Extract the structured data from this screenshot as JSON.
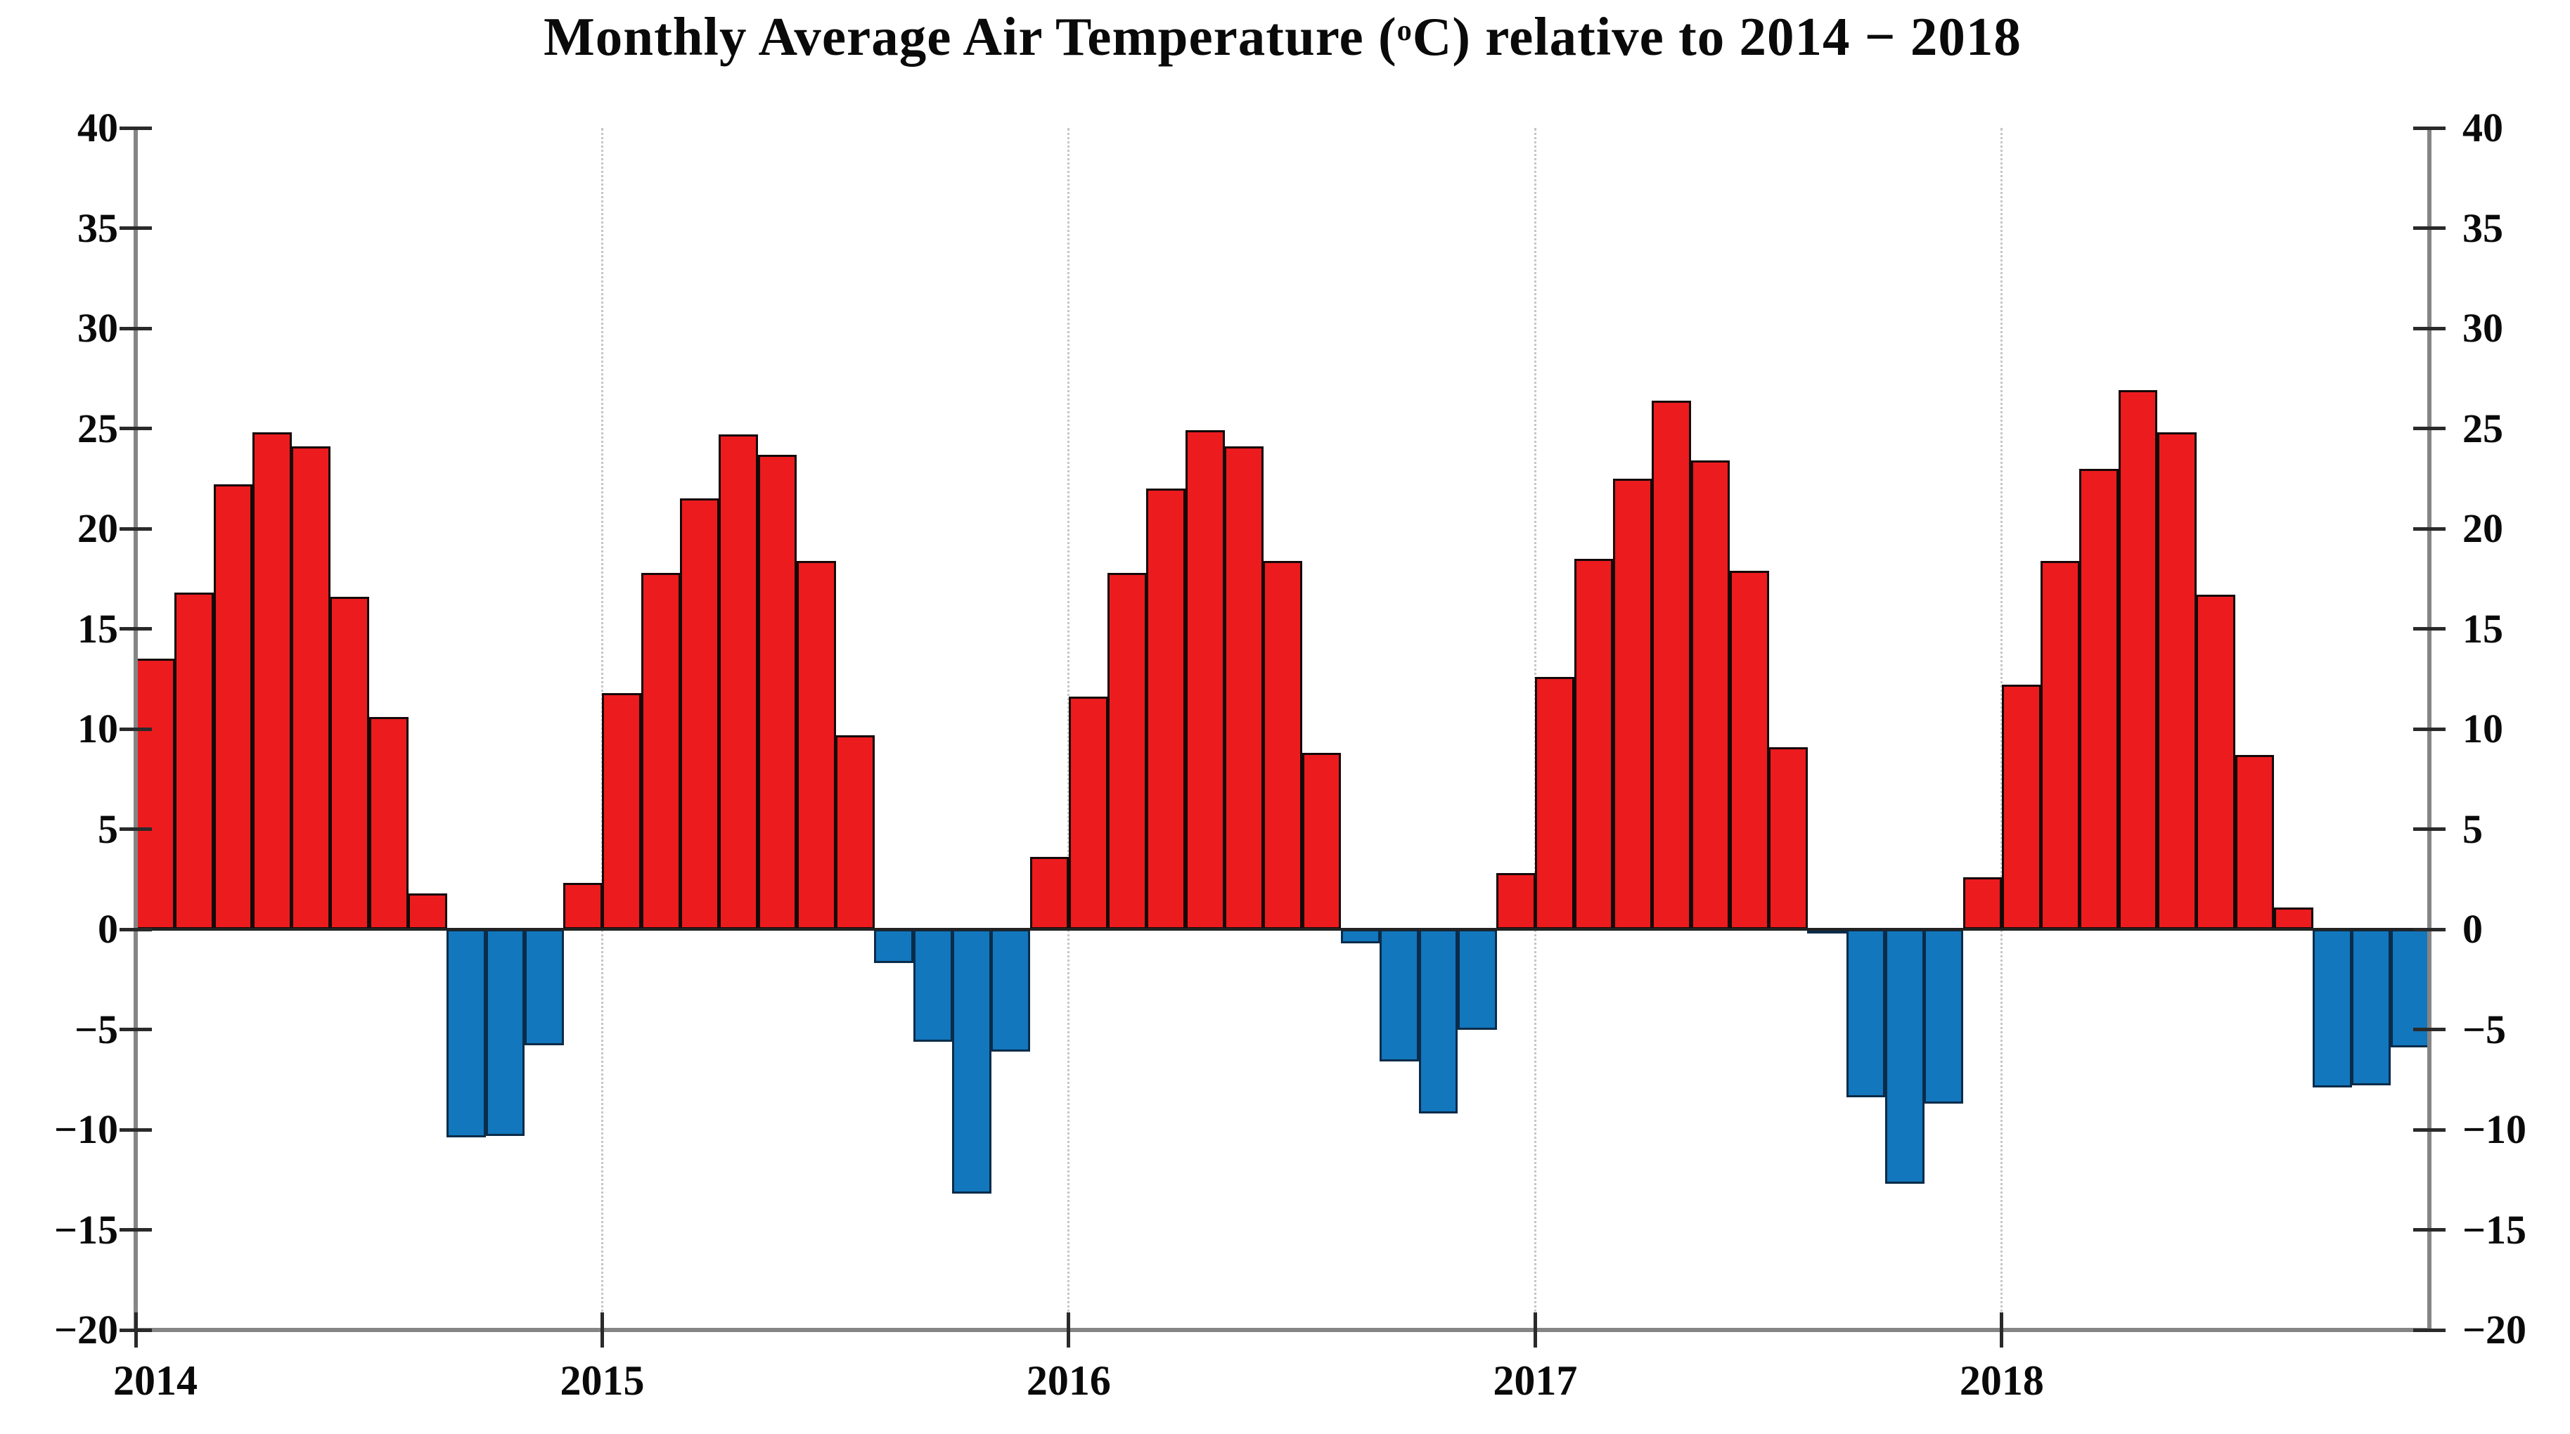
{
  "title": {
    "pre": "Monthly Average Air Temperature (",
    "sup": "o",
    "post": "C) relative to 2014 − 2018"
  },
  "chart_data": {
    "type": "bar",
    "title": "Monthly Average Air Temperature (°C) relative to 2014 − 2018",
    "xlabel": "",
    "ylabel": "",
    "ylim": [
      -20,
      40
    ],
    "ytick_values": [
      40,
      35,
      30,
      25,
      20,
      15,
      10,
      5,
      0,
      -5,
      -10,
      -15,
      -20
    ],
    "ytick_labels": [
      "40",
      "35",
      "30",
      "25",
      "20",
      "15",
      "10",
      "5",
      "0",
      "−5",
      "−10",
      "−15",
      "−20"
    ],
    "x_tick_labels": [
      "2014",
      "2015",
      "2016",
      "2017",
      "2018"
    ],
    "grid": "vertical dotted gridlines at year boundaries",
    "legend_position": "none",
    "bar_unit": "month",
    "positive_color": "#ec1b1e",
    "negative_color": "#1277bd",
    "series": [
      {
        "year": "2014",
        "values": [
          13.5,
          16.8,
          22.2,
          24.8,
          24.1,
          16.6,
          10.6,
          1.8,
          -10.4,
          -10.3,
          -5.8,
          2.3
        ]
      },
      {
        "year": "2015",
        "values": [
          11.8,
          17.8,
          21.5,
          24.7,
          23.7,
          18.4,
          9.7,
          -1.7,
          -5.6,
          -13.2,
          -6.1,
          3.6
        ]
      },
      {
        "year": "2016",
        "values": [
          11.6,
          17.8,
          22.0,
          24.9,
          24.1,
          18.4,
          8.8,
          -0.7,
          -6.6,
          -9.2,
          -5.0,
          2.8
        ]
      },
      {
        "year": "2017",
        "values": [
          12.6,
          18.5,
          22.5,
          26.4,
          23.4,
          17.9,
          9.1,
          -0.1,
          -8.4,
          -12.7,
          -8.7,
          2.6
        ]
      },
      {
        "year": "2018",
        "values": [
          12.2,
          18.4,
          23.0,
          26.9,
          24.8,
          16.7,
          8.7,
          1.1,
          -7.9,
          -7.8,
          -5.9
        ]
      }
    ]
  }
}
